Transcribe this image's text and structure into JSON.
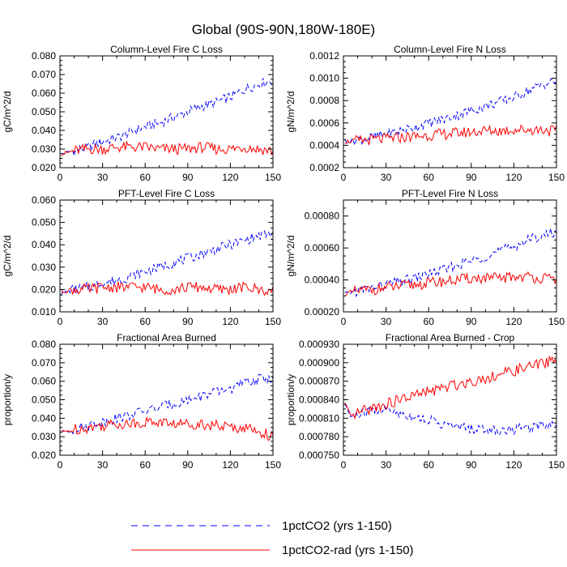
{
  "figure": {
    "title": "Global (90S-90N,180W-180E)",
    "legend": [
      {
        "label": "1pctCO2 (yrs 1-150)",
        "color": "#0000ff",
        "style": "dashed"
      },
      {
        "label": "1pctCO2-rad (yrs 1-150)",
        "color": "#ff0000",
        "style": "solid"
      }
    ]
  },
  "chart_data": [
    {
      "type": "line",
      "title": "Column-Level Fire C Loss",
      "ylabel": "gC/m^2/d",
      "xlim": [
        0,
        150
      ],
      "ylim": [
        0.02,
        0.08
      ],
      "xticks": [
        0,
        30,
        60,
        90,
        120,
        150
      ],
      "yticks": [
        "0.020",
        "0.030",
        "0.040",
        "0.050",
        "0.060",
        "0.070",
        "0.080"
      ],
      "series": [
        {
          "name": "1pctCO2 (yrs 1-150)",
          "color": "#0000ff",
          "style": "dashed",
          "x": [
            0,
            10,
            20,
            30,
            40,
            50,
            60,
            70,
            80,
            90,
            100,
            110,
            120,
            130,
            140,
            150
          ],
          "values": [
            0.027,
            0.029,
            0.031,
            0.034,
            0.036,
            0.039,
            0.042,
            0.044,
            0.047,
            0.05,
            0.053,
            0.055,
            0.058,
            0.062,
            0.065,
            0.067
          ]
        },
        {
          "name": "1pctCO2-rad (yrs 1-150)",
          "color": "#ff0000",
          "style": "solid",
          "x": [
            0,
            10,
            20,
            30,
            40,
            50,
            60,
            70,
            80,
            90,
            100,
            110,
            120,
            130,
            140,
            150
          ],
          "values": [
            0.027,
            0.029,
            0.03,
            0.03,
            0.031,
            0.031,
            0.031,
            0.03,
            0.03,
            0.03,
            0.031,
            0.03,
            0.03,
            0.031,
            0.03,
            0.029
          ]
        }
      ]
    },
    {
      "type": "line",
      "title": "Column-Level Fire N Loss",
      "ylabel": "gN/m^2/d",
      "xlim": [
        0,
        150
      ],
      "ylim": [
        0.0002,
        0.0012
      ],
      "xticks": [
        0,
        30,
        60,
        90,
        120,
        150
      ],
      "yticks": [
        "0.0002",
        "0.0004",
        "0.0006",
        "0.0008",
        "0.0010",
        "0.0012"
      ],
      "series": [
        {
          "name": "1pctCO2 (yrs 1-150)",
          "color": "#0000ff",
          "style": "dashed",
          "x": [
            0,
            10,
            20,
            30,
            40,
            50,
            60,
            70,
            80,
            90,
            100,
            110,
            120,
            130,
            140,
            150
          ],
          "values": [
            0.00043,
            0.00045,
            0.00047,
            0.0005,
            0.00053,
            0.00056,
            0.0006,
            0.00063,
            0.00067,
            0.00071,
            0.00075,
            0.00079,
            0.00083,
            0.00089,
            0.00094,
            0.00098
          ]
        },
        {
          "name": "1pctCO2-rad (yrs 1-150)",
          "color": "#ff0000",
          "style": "solid",
          "x": [
            0,
            10,
            20,
            30,
            40,
            50,
            60,
            70,
            80,
            90,
            100,
            110,
            120,
            130,
            140,
            150
          ],
          "values": [
            0.00043,
            0.00044,
            0.00045,
            0.00046,
            0.00047,
            0.00048,
            0.00049,
            0.0005,
            0.00051,
            0.00052,
            0.00053,
            0.00053,
            0.00054,
            0.00054,
            0.00054,
            0.00053
          ]
        }
      ]
    },
    {
      "type": "line",
      "title": "PFT-Level Fire C Loss",
      "ylabel": "gC/m^2/d",
      "xlim": [
        0,
        150
      ],
      "ylim": [
        0.01,
        0.06
      ],
      "xticks": [
        0,
        30,
        60,
        90,
        120,
        150
      ],
      "yticks": [
        "0.010",
        "0.020",
        "0.030",
        "0.040",
        "0.050",
        "0.060"
      ],
      "series": [
        {
          "name": "1pctCO2 (yrs 1-150)",
          "color": "#0000ff",
          "style": "dashed",
          "x": [
            0,
            10,
            20,
            30,
            40,
            50,
            60,
            70,
            80,
            90,
            100,
            110,
            120,
            130,
            140,
            150
          ],
          "values": [
            0.018,
            0.02,
            0.021,
            0.023,
            0.024,
            0.026,
            0.028,
            0.03,
            0.032,
            0.034,
            0.036,
            0.038,
            0.04,
            0.042,
            0.044,
            0.045
          ]
        },
        {
          "name": "1pctCO2-rad (yrs 1-150)",
          "color": "#ff0000",
          "style": "solid",
          "x": [
            0,
            10,
            20,
            30,
            40,
            50,
            60,
            70,
            80,
            90,
            100,
            110,
            120,
            130,
            140,
            150
          ],
          "values": [
            0.019,
            0.02,
            0.02,
            0.021,
            0.021,
            0.021,
            0.021,
            0.02,
            0.02,
            0.021,
            0.021,
            0.02,
            0.02,
            0.021,
            0.02,
            0.019
          ]
        }
      ]
    },
    {
      "type": "line",
      "title": "PFT-Level Fire N Loss",
      "ylabel": "gN/m^2/d",
      "xlim": [
        0,
        150
      ],
      "ylim": [
        0.0002,
        0.0009
      ],
      "xticks": [
        0,
        30,
        60,
        90,
        120,
        150
      ],
      "yticks": [
        "0.00020",
        "0.00040",
        "0.00060",
        "0.00080"
      ],
      "yticks_values": [
        0.0002,
        0.0004,
        0.0006,
        0.0008
      ],
      "series": [
        {
          "name": "1pctCO2 (yrs 1-150)",
          "color": "#0000ff",
          "style": "dashed",
          "x": [
            0,
            10,
            20,
            30,
            40,
            50,
            60,
            70,
            80,
            90,
            100,
            110,
            120,
            130,
            140,
            150
          ],
          "values": [
            0.00031,
            0.00033,
            0.00035,
            0.00037,
            0.00039,
            0.00041,
            0.00044,
            0.00046,
            0.00049,
            0.00052,
            0.00055,
            0.00058,
            0.00061,
            0.00065,
            0.00068,
            0.0007
          ]
        },
        {
          "name": "1pctCO2-rad (yrs 1-150)",
          "color": "#ff0000",
          "style": "solid",
          "x": [
            0,
            10,
            20,
            30,
            40,
            50,
            60,
            70,
            80,
            90,
            100,
            110,
            120,
            130,
            140,
            150
          ],
          "values": [
            0.00031,
            0.00033,
            0.00034,
            0.00035,
            0.00036,
            0.00037,
            0.00038,
            0.00039,
            0.0004,
            0.00041,
            0.00041,
            0.00041,
            0.00042,
            0.00042,
            0.00041,
            0.0004
          ]
        }
      ]
    },
    {
      "type": "line",
      "title": "Fractional Area Burned",
      "ylabel": "proportion/y",
      "xlim": [
        0,
        150
      ],
      "ylim": [
        0.02,
        0.08
      ],
      "xticks": [
        0,
        30,
        60,
        90,
        120,
        150
      ],
      "yticks": [
        "0.020",
        "0.030",
        "0.040",
        "0.050",
        "0.060",
        "0.070",
        "0.080"
      ],
      "series": [
        {
          "name": "1pctCO2 (yrs 1-150)",
          "color": "#0000ff",
          "style": "dashed",
          "x": [
            0,
            10,
            20,
            30,
            40,
            50,
            60,
            70,
            80,
            90,
            100,
            110,
            120,
            130,
            140,
            150
          ],
          "values": [
            0.032,
            0.034,
            0.036,
            0.038,
            0.04,
            0.042,
            0.044,
            0.046,
            0.048,
            0.05,
            0.052,
            0.054,
            0.056,
            0.059,
            0.061,
            0.062
          ]
        },
        {
          "name": "1pctCO2-rad (yrs 1-150)",
          "color": "#ff0000",
          "style": "solid",
          "x": [
            0,
            10,
            20,
            30,
            40,
            50,
            60,
            70,
            80,
            90,
            100,
            110,
            120,
            130,
            140,
            150
          ],
          "values": [
            0.032,
            0.034,
            0.035,
            0.036,
            0.037,
            0.037,
            0.038,
            0.038,
            0.037,
            0.037,
            0.037,
            0.036,
            0.035,
            0.035,
            0.033,
            0.03
          ]
        }
      ]
    },
    {
      "type": "line",
      "title": "Fractional Area Burned - Crop",
      "ylabel": "proportion/y",
      "xlim": [
        0,
        150
      ],
      "ylim": [
        0.00075,
        0.00093
      ],
      "xticks": [
        0,
        30,
        60,
        90,
        120,
        150
      ],
      "yticks": [
        "0.000750",
        "0.000780",
        "0.000810",
        "0.000840",
        "0.000870",
        "0.000900",
        "0.000930"
      ],
      "series": [
        {
          "name": "1pctCO2 (yrs 1-150)",
          "color": "#0000ff",
          "style": "dashed",
          "x": [
            0,
            5,
            10,
            20,
            30,
            40,
            50,
            60,
            70,
            80,
            90,
            100,
            110,
            120,
            130,
            140,
            150
          ],
          "values": [
            0.00084,
            0.000812,
            0.000815,
            0.000822,
            0.000824,
            0.000818,
            0.000812,
            0.000808,
            0.0008,
            0.000796,
            0.000793,
            0.000792,
            0.00079,
            0.000792,
            0.000795,
            0.0008,
            0.000803
          ]
        },
        {
          "name": "1pctCO2-rad (yrs 1-150)",
          "color": "#ff0000",
          "style": "solid",
          "x": [
            0,
            5,
            10,
            20,
            30,
            40,
            50,
            60,
            70,
            80,
            90,
            100,
            110,
            120,
            130,
            140,
            150
          ],
          "values": [
            0.00084,
            0.000812,
            0.000818,
            0.000826,
            0.000833,
            0.00084,
            0.000847,
            0.000853,
            0.000859,
            0.000865,
            0.00087,
            0.000875,
            0.000881,
            0.000887,
            0.000893,
            0.000899,
            0.000907
          ]
        }
      ]
    }
  ]
}
